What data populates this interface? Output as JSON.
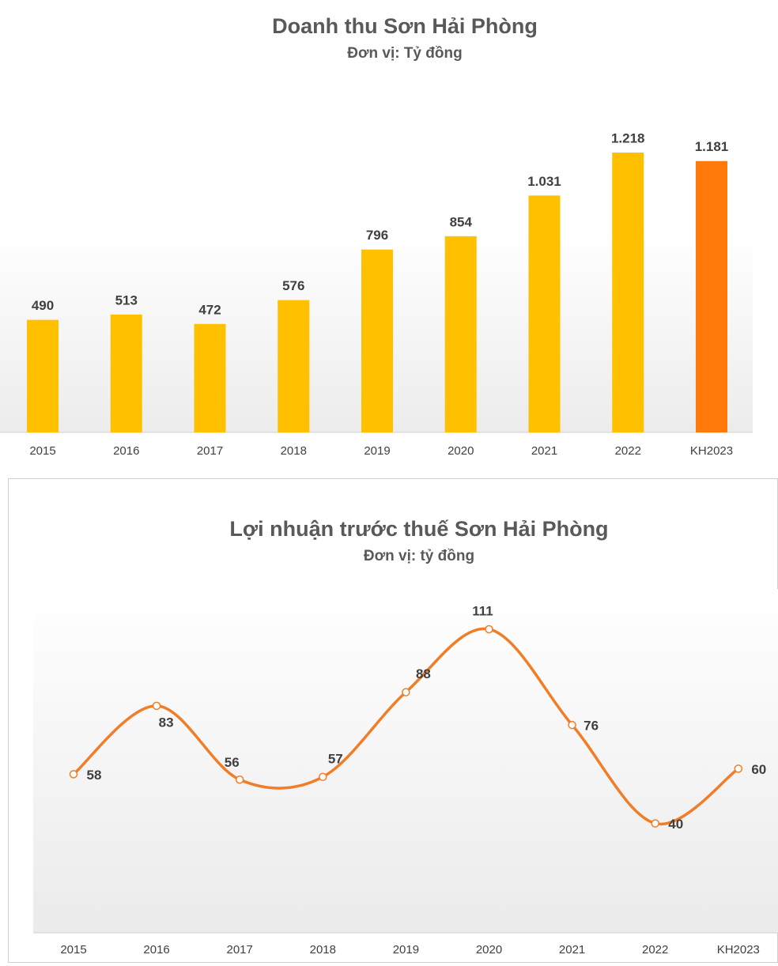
{
  "chart_data": [
    {
      "type": "bar",
      "title": "Doanh thu Sơn Hải Phòng",
      "subtitle": "Đơn vị: Tỷ đồng",
      "categories": [
        "2015",
        "2016",
        "2017",
        "2018",
        "2019",
        "2020",
        "2021",
        "2022",
        "KH2023"
      ],
      "values": [
        490,
        513,
        472,
        576,
        796,
        854,
        1031,
        1218,
        1181
      ],
      "value_labels": [
        "490",
        "513",
        "472",
        "576",
        "796",
        "854",
        "1.031",
        "1.218",
        "1.181"
      ],
      "colors": [
        "#ffc000",
        "#ffc000",
        "#ffc000",
        "#ffc000",
        "#ffc000",
        "#ffc000",
        "#ffc000",
        "#ffc000",
        "#ff7a0a"
      ]
    },
    {
      "type": "line",
      "title": "Lợi nhuận trước thuế Sơn Hải Phòng",
      "subtitle": "Đơn vị: tỷ đồng",
      "categories": [
        "2015",
        "2016",
        "2017",
        "2018",
        "2019",
        "2020",
        "2021",
        "2022",
        "KH2023"
      ],
      "series": [
        {
          "color": "#f07d28",
          "values": [
            58,
            83,
            56,
            57,
            88,
            111,
            76,
            40,
            60
          ]
        }
      ]
    }
  ]
}
